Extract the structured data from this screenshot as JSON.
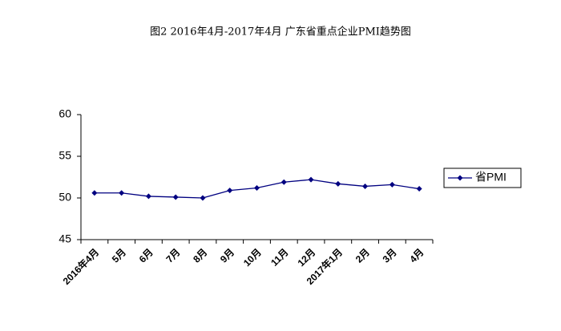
{
  "chart_data": {
    "type": "line",
    "title": "图2  2016年4月-2017年4月  广东省重点企业PMI趋势图",
    "categories": [
      "2016年4月",
      "5月",
      "6月",
      "7月",
      "8月",
      "9月",
      "10月",
      "11月",
      "12月",
      "2017年1月",
      "2月",
      "3月",
      "4月"
    ],
    "series": [
      {
        "name": "省PMI",
        "color": "#000080",
        "values": [
          50.6,
          50.6,
          50.2,
          50.1,
          50.0,
          50.9,
          51.2,
          51.9,
          52.2,
          51.7,
          51.4,
          51.6,
          51.1
        ]
      }
    ],
    "ylim": [
      45,
      60
    ],
    "yticks": [
      45,
      50,
      55,
      60
    ],
    "grid": false,
    "legend": "right"
  }
}
